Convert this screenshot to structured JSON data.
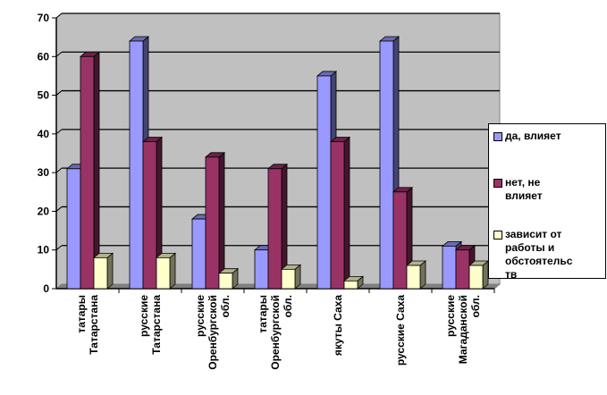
{
  "chart_data": {
    "type": "bar",
    "categories": [
      [
        "татары",
        "Татарстана"
      ],
      [
        "русские",
        "Татарстана"
      ],
      [
        "русские",
        "Оренбургской",
        "обл."
      ],
      [
        "татары",
        "Оренбургской",
        "обл."
      ],
      [
        "якуты Саха"
      ],
      [
        "русские Саха"
      ],
      [
        "русские",
        "Магаданской",
        "обл."
      ]
    ],
    "series": [
      {
        "name": "да, влияет",
        "color": "#9999ff",
        "values": [
          31,
          64,
          18,
          10,
          55,
          64,
          11
        ]
      },
      {
        "name": "нет, не влияет",
        "color": "#993366",
        "values": [
          60,
          38,
          34,
          31,
          38,
          25,
          10
        ]
      },
      {
        "name": "зависит от работы и обстоятельств",
        "color": "#ffffcc",
        "values": [
          8,
          8,
          4,
          5,
          2,
          6,
          6
        ]
      }
    ],
    "ylim": [
      0,
      70
    ],
    "yticks": [
      0,
      10,
      20,
      30,
      40,
      50,
      60,
      70
    ],
    "grid": true,
    "legend_position": "right",
    "legend_lines": [
      [
        "да, влияет"
      ],
      [
        "нет, не",
        "влияет"
      ],
      [
        "зависит от",
        "работы и",
        "обстоятельс",
        "тв"
      ]
    ]
  }
}
